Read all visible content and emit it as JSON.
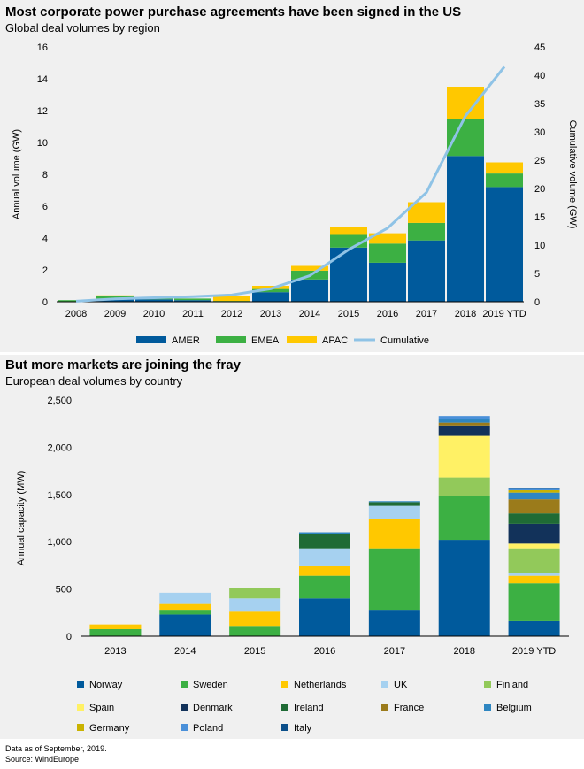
{
  "chart_data": [
    {
      "type": "bar",
      "stacked": true,
      "title": "Most corporate power purchase agreements have been signed in the US",
      "subtitle": "Global deal volumes by region",
      "xlabel": "",
      "ylabel": "Annual volume (GW)",
      "y2label": "Cumulative volume (GW)",
      "ylim": [
        0,
        16
      ],
      "y2lim": [
        0,
        45
      ],
      "yticks": [
        "0",
        "2",
        "4",
        "6",
        "8",
        "10",
        "12",
        "14",
        "16"
      ],
      "y2ticks": [
        "0",
        "5",
        "10",
        "15",
        "20",
        "25",
        "30",
        "35",
        "40",
        "45"
      ],
      "categories": [
        "2008",
        "2009",
        "2010",
        "2011",
        "2012",
        "2013",
        "2014",
        "2015",
        "2016",
        "2017",
        "2018",
        "2019 YTD"
      ],
      "series": [
        {
          "name": "AMER",
          "color": "#005a9c",
          "values": [
            0.0,
            0.2,
            0.15,
            0.1,
            0.0,
            0.6,
            1.4,
            3.4,
            2.45,
            3.85,
            9.15,
            7.2
          ]
        },
        {
          "name": "EMEA",
          "color": "#3cb043",
          "values": [
            0.1,
            0.15,
            0.05,
            0.1,
            0.05,
            0.2,
            0.55,
            0.85,
            1.2,
            1.1,
            2.35,
            0.85
          ]
        },
        {
          "name": "APAC",
          "color": "#ffc800",
          "values": [
            0.0,
            0.05,
            0.0,
            0.0,
            0.3,
            0.2,
            0.3,
            0.45,
            0.65,
            1.3,
            2.0,
            0.7
          ]
        }
      ],
      "line_series": {
        "name": "Cumulative",
        "color": "#8fc3e6",
        "axis": "right",
        "values": [
          0.1,
          0.5,
          0.7,
          0.9,
          1.2,
          2.3,
          4.6,
          9.2,
          13.0,
          19.3,
          32.8,
          41.5
        ]
      },
      "legend": {
        "position": "bottom",
        "items": [
          {
            "label": "AMER",
            "color": "#005a9c",
            "kind": "swatch"
          },
          {
            "label": "EMEA",
            "color": "#3cb043",
            "kind": "swatch"
          },
          {
            "label": "APAC",
            "color": "#ffc800",
            "kind": "swatch"
          },
          {
            "label": "Cumulative",
            "color": "#8fc3e6",
            "kind": "line"
          }
        ]
      },
      "grid": false
    },
    {
      "type": "bar",
      "stacked": true,
      "title": "But more markets are joining the fray",
      "subtitle": "European deal volumes by country",
      "xlabel": "",
      "ylabel": "Annual capacity (MW)",
      "ylim": [
        0,
        2500
      ],
      "yticks": [
        "0",
        "500",
        "1,000",
        "1,500",
        "2,000",
        "2,500"
      ],
      "categories": [
        "2013",
        "2014",
        "2015",
        "2016",
        "2017",
        "2018",
        "2019 YTD"
      ],
      "series": [
        {
          "name": "Norway",
          "color": "#005a9c",
          "values": [
            0,
            230,
            0,
            400,
            280,
            1020,
            160
          ]
        },
        {
          "name": "Sweden",
          "color": "#3cb043",
          "values": [
            75,
            50,
            110,
            240,
            650,
            460,
            400
          ]
        },
        {
          "name": "Netherlands",
          "color": "#ffc800",
          "values": [
            50,
            70,
            150,
            100,
            310,
            0,
            80
          ]
        },
        {
          "name": "UK",
          "color": "#a6d1f0",
          "values": [
            0,
            110,
            140,
            190,
            140,
            0,
            30
          ]
        },
        {
          "name": "Finland",
          "color": "#92c95a",
          "values": [
            0,
            0,
            110,
            0,
            0,
            200,
            260
          ]
        },
        {
          "name": "Spain",
          "color": "#fff165",
          "values": [
            0,
            0,
            0,
            0,
            0,
            440,
            50
          ]
        },
        {
          "name": "Denmark",
          "color": "#12325a",
          "values": [
            0,
            0,
            0,
            0,
            0,
            110,
            210
          ]
        },
        {
          "name": "Ireland",
          "color": "#1f6b35",
          "values": [
            0,
            0,
            0,
            150,
            40,
            0,
            110
          ]
        },
        {
          "name": "France",
          "color": "#9b7b1b",
          "values": [
            0,
            0,
            0,
            0,
            0,
            30,
            150
          ]
        },
        {
          "name": "Belgium",
          "color": "#2e86c1",
          "values": [
            0,
            0,
            0,
            20,
            10,
            40,
            70
          ]
        },
        {
          "name": "Germany",
          "color": "#c9b200",
          "values": [
            0,
            0,
            0,
            0,
            0,
            0,
            25
          ]
        },
        {
          "name": "Poland",
          "color": "#4a90d9",
          "values": [
            0,
            0,
            0,
            0,
            0,
            30,
            15
          ]
        },
        {
          "name": "Italy",
          "color": "#0b4f8a",
          "values": [
            0,
            0,
            0,
            0,
            0,
            0,
            10
          ]
        }
      ],
      "legend": {
        "position": "bottom",
        "items": [
          {
            "label": "Norway",
            "color": "#005a9c"
          },
          {
            "label": "Sweden",
            "color": "#3cb043"
          },
          {
            "label": "Netherlands",
            "color": "#ffc800"
          },
          {
            "label": "UK",
            "color": "#a6d1f0"
          },
          {
            "label": "Finland",
            "color": "#92c95a"
          },
          {
            "label": "Spain",
            "color": "#fff165"
          },
          {
            "label": "Denmark",
            "color": "#12325a"
          },
          {
            "label": "Ireland",
            "color": "#1f6b35"
          },
          {
            "label": "France",
            "color": "#9b7b1b"
          },
          {
            "label": "Belgium",
            "color": "#2e86c1"
          },
          {
            "label": "Germany",
            "color": "#c9b200"
          },
          {
            "label": "Poland",
            "color": "#4a90d9"
          },
          {
            "label": "Italy",
            "color": "#0b4f8a"
          }
        ]
      },
      "grid": false
    }
  ],
  "footnote": {
    "line1": "Data as of September, 2019.",
    "line2": "Source: WindEurope"
  }
}
